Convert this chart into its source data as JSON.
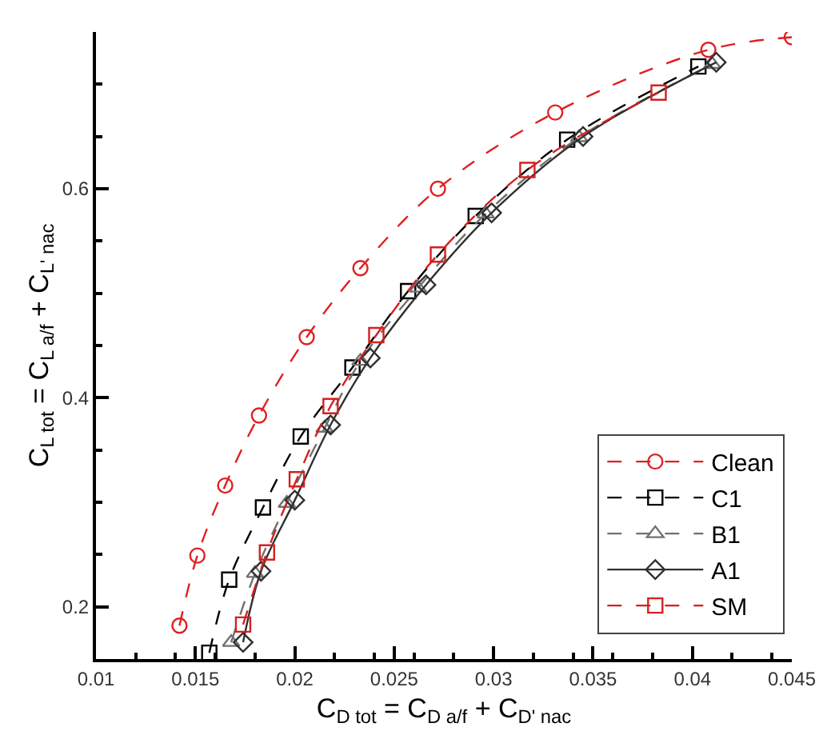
{
  "chart_data": {
    "type": "line",
    "xlabel": "C$_{D tot}$ = C$_{D a/f}$ + C$_{D' nac}$",
    "ylabel": "C$_{L tot}$ = C$_{L a/f}$ + C$_{L' nac}$",
    "series": [
      {
        "name": "Clean",
        "color": "#e02020",
        "marker": "circle",
        "line_style": "dashed",
        "x": [
          0.0142,
          0.0151,
          0.0165,
          0.0182,
          0.0206,
          0.0233,
          0.0272,
          0.0331,
          0.0408,
          0.045
        ],
        "values": [
          0.182,
          0.249,
          0.316,
          0.383,
          0.458,
          0.524,
          0.6,
          0.673,
          0.733,
          0.745
        ]
      },
      {
        "name": "C1",
        "color": "#000000",
        "marker": "square",
        "line_style": "dashed",
        "x": [
          0.0157,
          0.0167,
          0.0184,
          0.0203,
          0.0229,
          0.0257,
          0.0291,
          0.0337,
          0.0403
        ],
        "values": [
          0.156,
          0.226,
          0.295,
          0.363,
          0.429,
          0.502,
          0.574,
          0.647,
          0.717
        ]
      },
      {
        "name": "B1",
        "color": "#707070",
        "marker": "triangle",
        "line_style": "dashed",
        "x": [
          0.0168,
          0.018,
          0.0196,
          0.0215,
          0.0233,
          0.0262,
          0.0296,
          0.0343,
          0.041
        ],
        "values": [
          0.166,
          0.232,
          0.299,
          0.371,
          0.435,
          0.505,
          0.576,
          0.649,
          0.719
        ]
      },
      {
        "name": "A1",
        "color": "#303030",
        "marker": "diamond",
        "line_style": "solid",
        "x": [
          0.0174,
          0.0183,
          0.02,
          0.0218,
          0.0238,
          0.0266,
          0.0299,
          0.0345,
          0.0412
        ],
        "values": [
          0.166,
          0.234,
          0.302,
          0.374,
          0.438,
          0.508,
          0.577,
          0.65,
          0.721
        ]
      },
      {
        "name": "SM",
        "color": "#d42020",
        "marker": "square",
        "line_style": "dashed",
        "x": [
          0.0174,
          0.0186,
          0.0201,
          0.0218,
          0.0241,
          0.0272,
          0.0317,
          0.0383
        ],
        "values": [
          0.183,
          0.252,
          0.322,
          0.392,
          0.46,
          0.537,
          0.618,
          0.692
        ]
      }
    ],
    "xlim": [
      0.01,
      0.045
    ],
    "xticks": [
      0.01,
      0.015,
      0.02,
      0.025,
      0.03,
      0.035,
      0.04,
      0.045
    ],
    "ylim": [
      0.15,
      0.75
    ],
    "yticks": [
      0.2,
      0.4,
      0.6
    ],
    "legend": "bottom right"
  }
}
